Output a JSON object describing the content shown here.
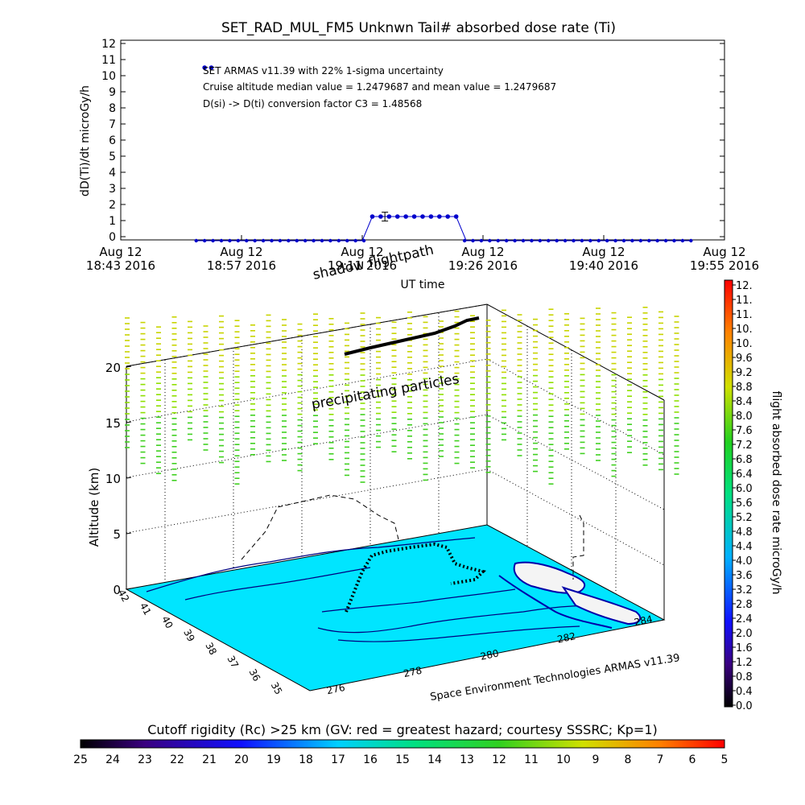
{
  "top_title": "SET_RAD_MUL_FM5 Unknwn Tail#  absorbed dose rate (Ti)",
  "annotations": [
    "SET ARMAS v11.39 with 22% 1-sigma uncertainty",
    "Cruise altitude median value = 1.2479687 and mean value = 1.2479687",
    "D(si) -> D(ti) conversion factor C3 = 1.48568"
  ],
  "time_axis": {
    "xlabel": "UT time",
    "ylabel": "dD(Ti)/dt microGy/h",
    "ticks": [
      {
        "top": "Aug 12",
        "bottom": "18:43 2016"
      },
      {
        "top": "Aug 12",
        "bottom": "18:57 2016"
      },
      {
        "top": "Aug 12",
        "bottom": "19:11 2016"
      },
      {
        "top": "Aug 12",
        "bottom": "19:26 2016"
      },
      {
        "top": "Aug 12",
        "bottom": "19:40 2016"
      },
      {
        "top": "Aug 12",
        "bottom": "19:55 2016"
      }
    ],
    "yticks": [
      "0",
      "1",
      "2",
      "3",
      "4",
      "5",
      "6",
      "7",
      "8",
      "9",
      "10",
      "11",
      "12"
    ]
  },
  "chart_data": [
    {
      "type": "line",
      "title": "SET_RAD_MUL_FM5 Unknwn Tail#  absorbed dose rate (Ti)",
      "xlabel": "UT time",
      "ylabel": "dD(Ti)/dt microGy/h",
      "ylim": [
        0,
        12
      ],
      "xlim_minutes_utc": [
        "18:43",
        "19:55"
      ],
      "series": [
        {
          "points": [
            {
              "t": "18:53.0",
              "y": 10.5
            },
            {
              "t": "18:53.8",
              "y": 10.5
            },
            {
              "t": "19:13.0",
              "y": 1.25
            },
            {
              "t": "19:14.0",
              "y": 1.25
            },
            {
              "t": "19:15.0",
              "y": 1.25
            },
            {
              "t": "19:16.0",
              "y": 1.25
            },
            {
              "t": "19:17.0",
              "y": 1.25
            },
            {
              "t": "19:18.0",
              "y": 1.25
            },
            {
              "t": "19:19.0",
              "y": 1.25
            },
            {
              "t": "19:20.0",
              "y": 1.25
            },
            {
              "t": "19:21.0",
              "y": 1.25
            },
            {
              "t": "19:22.0",
              "y": 1.25
            },
            {
              "t": "19:23.0",
              "y": 1.25
            }
          ],
          "baseline_y": -0.25,
          "baseline_range": [
            "18:52",
            "19:51"
          ],
          "error_bar": {
            "t": "19:14.5",
            "y": 1.25,
            "low": 0.97,
            "high": 1.52
          }
        }
      ]
    },
    {
      "type": "scatter",
      "title": "",
      "zlabel": "Altitude (km)",
      "zticks": [
        "0",
        "5",
        "10",
        "15",
        "20"
      ],
      "lat_ticks": [
        "42",
        "41",
        "40",
        "39",
        "38",
        "37",
        "36",
        "35"
      ],
      "lon_ticks": [
        "276",
        "278",
        "280",
        "282",
        "284"
      ],
      "labels": [
        "shadow flightpath",
        "precipitating particles"
      ],
      "credit": "Space Environment Technologies ARMAS v11.39"
    }
  ],
  "colorbar_right": {
    "label": "flight absorbed dose rate microGy/h",
    "ticks": [
      "12.",
      "11.",
      "11.",
      "10.",
      "10.",
      "9.6",
      "9.2",
      "8.8",
      "8.4",
      "8.0",
      "7.6",
      "7.2",
      "6.8",
      "6.4",
      "6.0",
      "5.6",
      "5.2",
      "4.8",
      "4.4",
      "4.0",
      "3.6",
      "3.2",
      "2.8",
      "2.4",
      "2.0",
      "1.6",
      "1.2",
      "0.8",
      "0.4",
      "0.0"
    ]
  },
  "colorbar_bottom": {
    "title": "Cutoff rigidity (Rc) >25 km (GV: red = greatest hazard; courtesy SSSRC; Kp=1)",
    "ticks": [
      "25",
      "24",
      "23",
      "22",
      "21",
      "20",
      "19",
      "18",
      "17",
      "16",
      "15",
      "14",
      "13",
      "12",
      "11",
      "10",
      "9",
      "8",
      "7",
      "6",
      "5"
    ]
  },
  "colors": {
    "series": "#0000cc",
    "ocean": "#00e5ff",
    "map_line": "#000080",
    "path": "#000000"
  }
}
